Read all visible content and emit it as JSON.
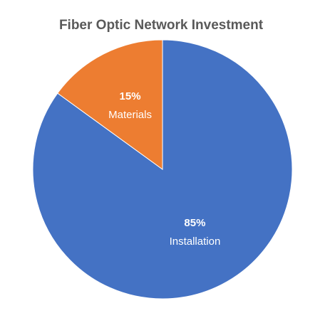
{
  "chart_data": {
    "type": "pie",
    "title": "Fiber Optic Network Investment",
    "categories": [
      "Installation",
      "Materials"
    ],
    "values": [
      85,
      15
    ],
    "value_labels": [
      "85%",
      "15%"
    ],
    "colors": [
      "#4472c4",
      "#ed7d31"
    ]
  }
}
